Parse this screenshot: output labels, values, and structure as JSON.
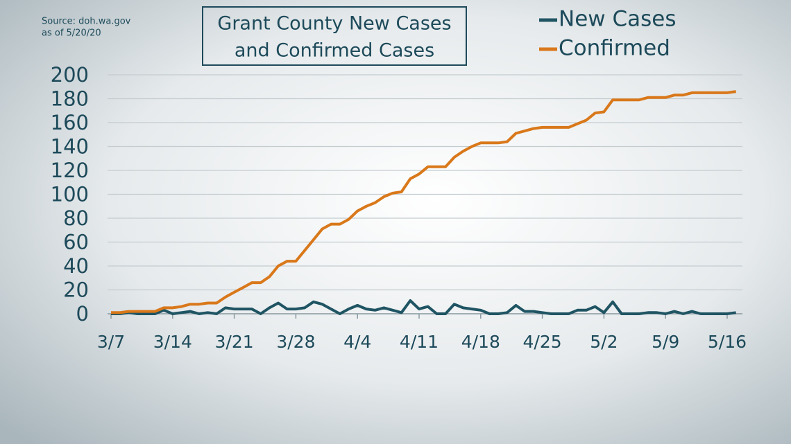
{
  "chart_data": {
    "type": "line",
    "title": [
      "Grant County New Cases",
      "and Confirmed Cases"
    ],
    "source": [
      "Source: doh.wa.gov",
      "as of 5/20/20"
    ],
    "categories": [
      "3/7",
      null,
      null,
      null,
      null,
      null,
      null,
      "3/14",
      null,
      null,
      null,
      null,
      null,
      null,
      "3/21",
      null,
      null,
      null,
      null,
      null,
      null,
      "3/28",
      null,
      null,
      null,
      null,
      null,
      null,
      "4/4",
      null,
      null,
      null,
      null,
      null,
      null,
      "4/11",
      null,
      null,
      null,
      null,
      null,
      null,
      "4/18",
      null,
      null,
      null,
      null,
      null,
      null,
      "4/25",
      null,
      null,
      null,
      null,
      null,
      null,
      "5/2",
      null,
      null,
      null,
      null,
      null,
      null,
      "5/9",
      null,
      null,
      null,
      null,
      null,
      null,
      "5/16",
      null
    ],
    "series": [
      {
        "name": "New Cases",
        "color": "#1f5463",
        "values": [
          0,
          0,
          1,
          0,
          0,
          0,
          3,
          0,
          1,
          2,
          0,
          1,
          0,
          5,
          4,
          4,
          4,
          0,
          5,
          9,
          4,
          4,
          5,
          10,
          8,
          4,
          0,
          4,
          7,
          4,
          3,
          5,
          3,
          1,
          11,
          4,
          6,
          0,
          0,
          8,
          5,
          4,
          3,
          0,
          0,
          1,
          7,
          2,
          2,
          1,
          0,
          0,
          0,
          3,
          3,
          6,
          1,
          10,
          0,
          0,
          0,
          1,
          1,
          0,
          2,
          0,
          2,
          0,
          0,
          0,
          0,
          1
        ]
      },
      {
        "name": "Confirmed",
        "color": "#d9781a",
        "values": [
          1,
          1,
          2,
          2,
          2,
          2,
          5,
          5,
          6,
          8,
          8,
          9,
          9,
          14,
          18,
          22,
          26,
          26,
          31,
          40,
          44,
          44,
          53,
          62,
          71,
          75,
          75,
          79,
          86,
          90,
          93,
          98,
          101,
          102,
          113,
          117,
          123,
          123,
          123,
          131,
          136,
          140,
          143,
          143,
          143,
          144,
          151,
          153,
          155,
          156,
          156,
          156,
          156,
          159,
          162,
          168,
          169,
          179,
          179,
          179,
          179,
          181,
          181,
          181,
          183,
          183,
          185,
          185,
          185,
          185,
          185,
          186
        ]
      }
    ],
    "ylim": [
      0,
      200
    ],
    "yticks": [
      0,
      20,
      40,
      60,
      80,
      100,
      120,
      140,
      160,
      180,
      200
    ],
    "grid": true
  }
}
